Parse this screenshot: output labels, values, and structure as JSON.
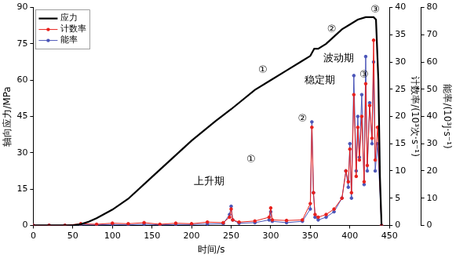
{
  "chart_data": {
    "type": "line",
    "x_label": "时间/s",
    "y_label": "轴向应力/MPa",
    "y2_label": "计数率/(10³次·s⁻¹)",
    "y3_label": "能率/(10³J·s⁻¹)",
    "xlim": [
      0,
      450
    ],
    "xticks": [
      0,
      50,
      100,
      150,
      200,
      250,
      300,
      350,
      400,
      450
    ],
    "ylim": [
      0,
      90
    ],
    "yticks": [
      0,
      15,
      30,
      45,
      60,
      75,
      90
    ],
    "y2lim": [
      0,
      40
    ],
    "y2ticks": [
      0,
      5,
      10,
      15,
      20,
      25,
      30,
      35,
      40
    ],
    "y3lim": [
      0,
      80
    ],
    "y3ticks": [
      0,
      10,
      20,
      30,
      40,
      50,
      60,
      70,
      80
    ],
    "grid": false,
    "legend": "upper left",
    "series": [
      {
        "name": "应力",
        "color": "#000000",
        "marker": "none",
        "line_style": "solid",
        "x": [
          0,
          50,
          60,
          70,
          80,
          100,
          120,
          150,
          180,
          200,
          230,
          250,
          280,
          300,
          320,
          340,
          350,
          355,
          360,
          370,
          380,
          390,
          400,
          410,
          420,
          430,
          433,
          436,
          438,
          440
        ],
        "values": [
          0,
          0,
          0.5,
          1.5,
          3,
          6.5,
          11,
          20,
          29,
          35,
          43,
          48,
          56,
          60,
          64,
          68,
          70,
          73,
          73,
          75,
          78,
          81,
          83,
          85,
          86,
          86,
          85,
          60,
          20,
          0
        ]
      },
      {
        "name": "计数率",
        "color": "#e8201c",
        "marker": "circle",
        "line_style": "solid",
        "axis": "y2",
        "x": [
          0,
          20,
          40,
          60,
          80,
          100,
          120,
          140,
          160,
          180,
          200,
          220,
          240,
          248,
          250,
          252,
          260,
          280,
          298,
          300,
          302,
          320,
          340,
          350,
          352,
          354,
          356,
          360,
          370,
          380,
          390,
          395,
          398,
          400,
          402,
          405,
          408,
          410,
          412,
          415,
          418,
          420,
          422,
          425,
          428,
          430,
          432,
          435,
          440
        ],
        "values": [
          0,
          0,
          0,
          0.3,
          0.2,
          0.4,
          0.3,
          0.5,
          0.2,
          0.4,
          0.3,
          0.6,
          0.5,
          1.5,
          3.0,
          1.0,
          0.6,
          0.8,
          1.5,
          3.2,
          1.0,
          0.9,
          1.0,
          4,
          18,
          6,
          2,
          1.5,
          2,
          3,
          5,
          10,
          8,
          14,
          6,
          24,
          9,
          18,
          12,
          20,
          8,
          26,
          11,
          22,
          16,
          34,
          12,
          18,
          0
        ]
      },
      {
        "name": "能率",
        "color": "#4a55b8",
        "marker": "circle",
        "line_style": "solid",
        "axis": "y3",
        "x": [
          0,
          20,
          40,
          60,
          80,
          100,
          120,
          140,
          160,
          180,
          200,
          220,
          240,
          248,
          250,
          252,
          260,
          280,
          298,
          300,
          302,
          320,
          340,
          350,
          352,
          354,
          356,
          360,
          370,
          380,
          390,
          395,
          398,
          400,
          402,
          405,
          408,
          410,
          412,
          415,
          418,
          420,
          422,
          425,
          428,
          430,
          432,
          435,
          440
        ],
        "values": [
          0,
          0,
          0,
          0.2,
          0.2,
          0.3,
          0.2,
          0.4,
          0.2,
          0.3,
          0.3,
          0.5,
          0.6,
          4,
          7,
          2,
          0.8,
          1,
          2,
          5,
          1.5,
          1,
          1.5,
          6,
          38,
          12,
          3,
          2,
          3,
          5,
          10,
          20,
          14,
          30,
          10,
          55,
          20,
          40,
          25,
          48,
          15,
          62,
          20,
          45,
          30,
          60,
          20,
          30,
          0
        ]
      }
    ],
    "annotations": [
      {
        "text": "上升期",
        "x": 222,
        "y": 18
      },
      {
        "text": "①",
        "x": 275,
        "y": 27
      },
      {
        "text": "稳定期",
        "x": 362,
        "y": 60
      },
      {
        "text": "②",
        "x": 340,
        "y": 44
      },
      {
        "text": "波动期",
        "x": 386,
        "y": 69
      },
      {
        "text": "③",
        "x": 418,
        "y": 62
      },
      {
        "text": "①",
        "x": 290,
        "y": 64
      },
      {
        "text": "②",
        "x": 377,
        "y": 81
      },
      {
        "text": "③",
        "x": 432,
        "y": 89
      }
    ]
  }
}
